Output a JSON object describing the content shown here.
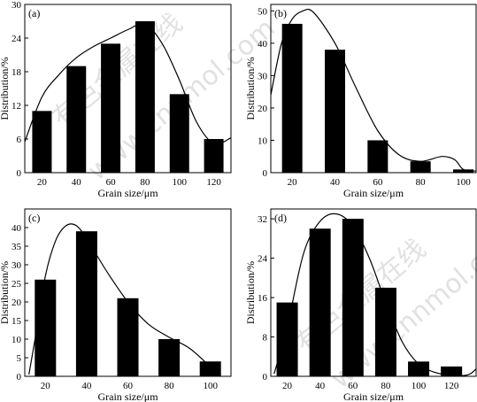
{
  "watermark": {
    "text_cn": "有色金属在线",
    "text_url": "www.cnnmol.com"
  },
  "chart_data": [
    {
      "type": "bar",
      "panel_label": "(a)",
      "categories": [
        "20",
        "40",
        "60",
        "80",
        "100",
        "120"
      ],
      "values": [
        11,
        19,
        23,
        27,
        14,
        6
      ],
      "xlabel": "Grain size/μm",
      "ylabel": "Distribution/%",
      "ylim": [
        0,
        30
      ],
      "yticks": [
        "0",
        "6",
        "12",
        "18",
        "24",
        "30"
      ],
      "fit_curve": [
        [
          10,
          5.5
        ],
        [
          20,
          13.5
        ],
        [
          30,
          17.5
        ],
        [
          40,
          20.5
        ],
        [
          50,
          22.5
        ],
        [
          60,
          24
        ],
        [
          70,
          25.5
        ],
        [
          80,
          26.5
        ],
        [
          90,
          23
        ],
        [
          100,
          16.5
        ],
        [
          110,
          9
        ],
        [
          120,
          5.2
        ],
        [
          130,
          6.2
        ]
      ]
    },
    {
      "type": "bar",
      "panel_label": "(b)",
      "categories": [
        "20",
        "40",
        "60",
        "80",
        "100"
      ],
      "values": [
        46,
        38,
        10,
        3.5,
        1
      ],
      "xlabel": "Grain size/μm",
      "ylabel": "Distribution/%",
      "ylim": [
        0,
        52
      ],
      "yticks": [
        "0",
        "10",
        "20",
        "30",
        "40",
        "50"
      ],
      "fit_curve": [
        [
          10,
          24
        ],
        [
          15,
          40
        ],
        [
          20,
          47.5
        ],
        [
          25,
          50
        ],
        [
          30,
          49.5
        ],
        [
          40,
          40
        ],
        [
          50,
          26
        ],
        [
          60,
          13
        ],
        [
          70,
          5.5
        ],
        [
          80,
          3.5
        ],
        [
          90,
          5
        ],
        [
          96,
          4
        ],
        [
          100,
          1
        ],
        [
          106,
          0.5
        ]
      ]
    },
    {
      "type": "bar",
      "panel_label": "(c)",
      "categories": [
        "20",
        "40",
        "60",
        "80",
        "100"
      ],
      "values": [
        26,
        39,
        21,
        10,
        4
      ],
      "xlabel": "Grain size/μm",
      "ylabel": "Distribution/%",
      "ylim": [
        0,
        45
      ],
      "yticks": [
        "0",
        "5",
        "10",
        "15",
        "20",
        "25",
        "30",
        "35",
        "40"
      ],
      "fit_curve": [
        [
          12,
          0.5
        ],
        [
          15,
          10
        ],
        [
          20,
          27
        ],
        [
          25,
          36.5
        ],
        [
          30,
          40.5
        ],
        [
          35,
          40.5
        ],
        [
          40,
          37
        ],
        [
          50,
          28
        ],
        [
          60,
          20
        ],
        [
          70,
          14
        ],
        [
          80,
          10.5
        ],
        [
          90,
          7.5
        ],
        [
          100,
          2.5
        ],
        [
          103,
          0.5
        ]
      ]
    },
    {
      "type": "bar",
      "panel_label": "(d)",
      "categories": [
        "20",
        "40",
        "60",
        "80",
        "100",
        "120"
      ],
      "values": [
        15,
        30,
        32,
        18,
        3,
        2
      ],
      "xlabel": "Grain size/μm",
      "ylabel": "Distribution/%",
      "ylim": [
        0,
        34
      ],
      "yticks": [
        "0",
        "8",
        "16",
        "24",
        "32"
      ],
      "fit_curve": [
        [
          12,
          0.5
        ],
        [
          20,
          10
        ],
        [
          30,
          25
        ],
        [
          40,
          31.5
        ],
        [
          50,
          33
        ],
        [
          60,
          30.5
        ],
        [
          70,
          24
        ],
        [
          80,
          15
        ],
        [
          90,
          7
        ],
        [
          100,
          2.5
        ],
        [
          110,
          0.8
        ],
        [
          120,
          0.2
        ],
        [
          130,
          0.3
        ],
        [
          135,
          1.5
        ]
      ]
    }
  ]
}
